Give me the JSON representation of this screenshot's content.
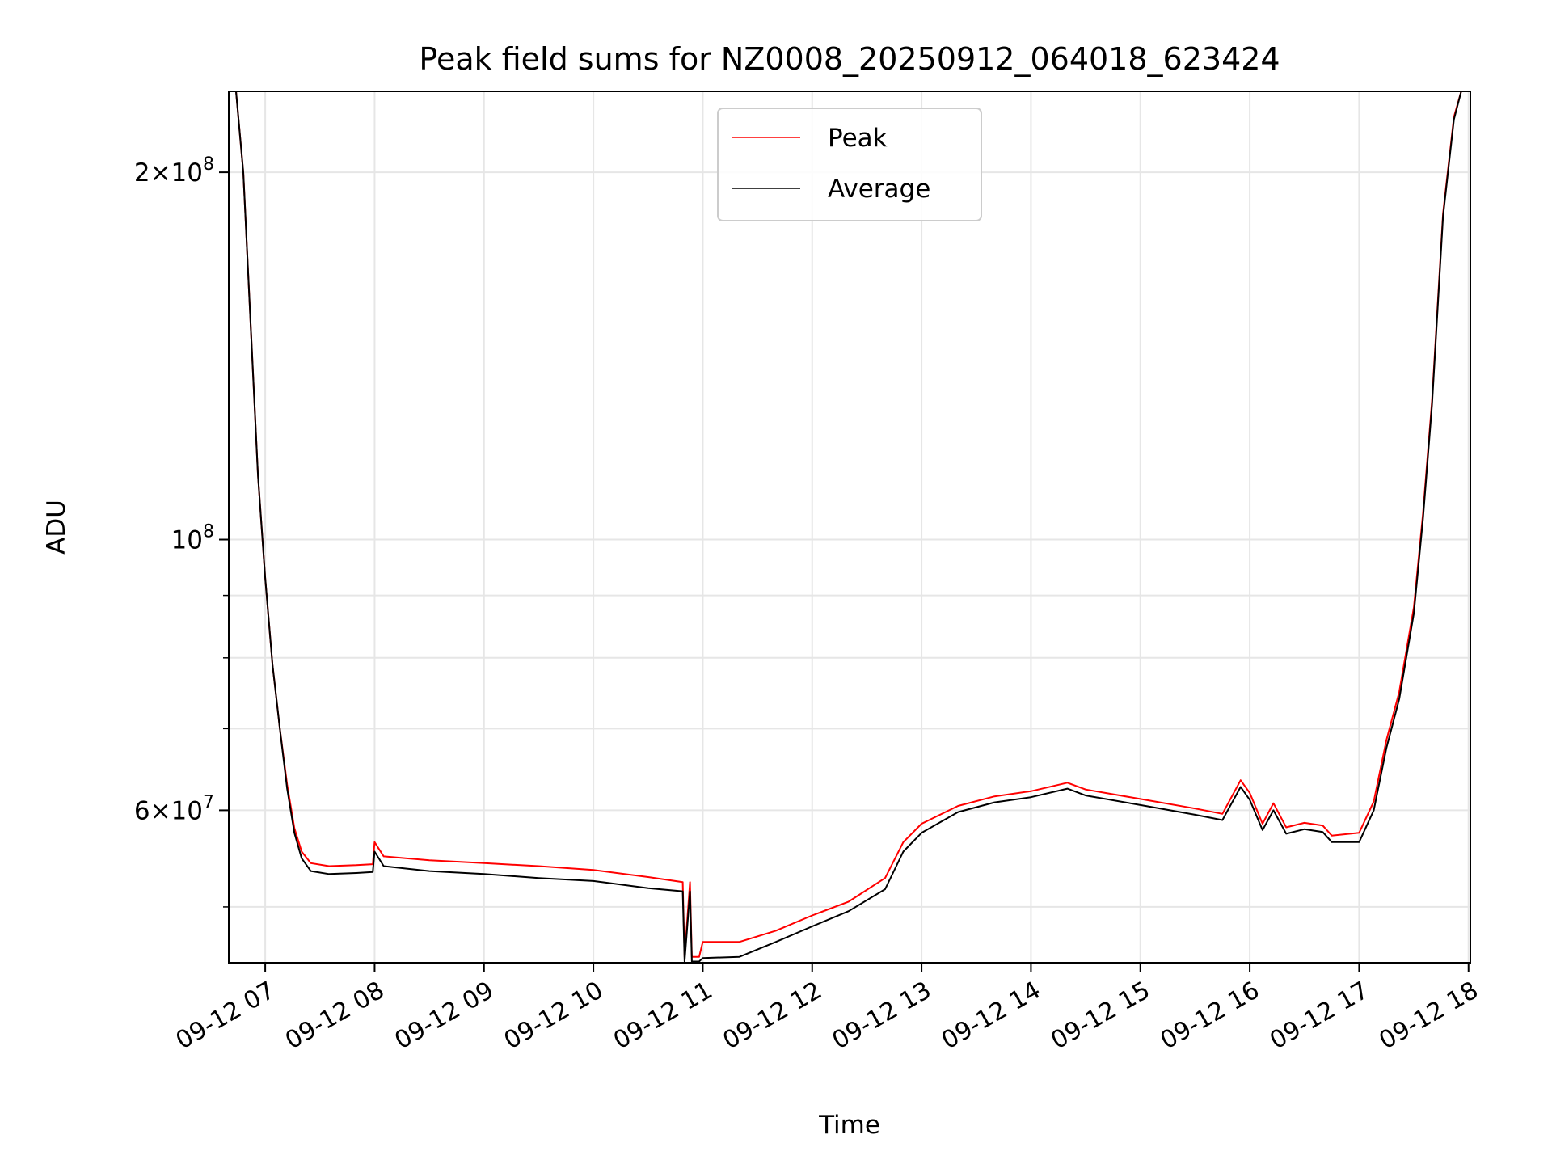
{
  "chart_data": {
    "type": "line",
    "title": "Peak field sums for NZ0008_20250912_064018_623424",
    "xlabel": "Time",
    "ylabel": "ADU",
    "y_scale": "log",
    "ylim": [
      45000000,
      233000000
    ],
    "xlim": [
      "2025-09-12 06:40",
      "2025-09-12 18:01"
    ],
    "grid": true,
    "legend_position": "top-center",
    "x_ticks": [
      {
        "label": "09-12 07",
        "x": "2025-09-12 07:00"
      },
      {
        "label": "09-12 08",
        "x": "2025-09-12 08:00"
      },
      {
        "label": "09-12 09",
        "x": "2025-09-12 09:00"
      },
      {
        "label": "09-12 10",
        "x": "2025-09-12 10:00"
      },
      {
        "label": "09-12 11",
        "x": "2025-09-12 11:00"
      },
      {
        "label": "09-12 12",
        "x": "2025-09-12 12:00"
      },
      {
        "label": "09-12 13",
        "x": "2025-09-12 13:00"
      },
      {
        "label": "09-12 14",
        "x": "2025-09-12 14:00"
      },
      {
        "label": "09-12 15",
        "x": "2025-09-12 15:00"
      },
      {
        "label": "09-12 16",
        "x": "2025-09-12 16:00"
      },
      {
        "label": "09-12 17",
        "x": "2025-09-12 17:00"
      },
      {
        "label": "09-12 18",
        "x": "2025-09-12 18:00"
      }
    ],
    "y_ticks": [
      {
        "value": 60000000,
        "base": "6",
        "exp": "7"
      },
      {
        "value": 100000000,
        "base": "",
        "exp": "8"
      },
      {
        "value": 200000000,
        "base": "2",
        "exp": "8"
      }
    ],
    "y_minor_ticks": [
      50000000,
      70000000,
      80000000,
      90000000
    ],
    "series": [
      {
        "name": "Peak",
        "color": "#ff0000",
        "points": [
          [
            "2025-09-12 06:44",
            233000000
          ],
          [
            "2025-09-12 06:48",
            200000000
          ],
          [
            "2025-09-12 06:52",
            150000000
          ],
          [
            "2025-09-12 06:56",
            113000000
          ],
          [
            "2025-09-12 07:00",
            93000000
          ],
          [
            "2025-09-12 07:04",
            79000000
          ],
          [
            "2025-09-12 07:08",
            70000000
          ],
          [
            "2025-09-12 07:12",
            63000000
          ],
          [
            "2025-09-12 07:16",
            58000000
          ],
          [
            "2025-09-12 07:20",
            55500000
          ],
          [
            "2025-09-12 07:25",
            54300000
          ],
          [
            "2025-09-12 07:35",
            54000000
          ],
          [
            "2025-09-12 07:50",
            54100000
          ],
          [
            "2025-09-12 07:59",
            54200000
          ],
          [
            "2025-09-12 08:00",
            56500000
          ],
          [
            "2025-09-12 08:05",
            55000000
          ],
          [
            "2025-09-12 08:30",
            54600000
          ],
          [
            "2025-09-12 09:00",
            54300000
          ],
          [
            "2025-09-12 09:30",
            54000000
          ],
          [
            "2025-09-12 10:00",
            53600000
          ],
          [
            "2025-09-12 10:30",
            52900000
          ],
          [
            "2025-09-12 10:49",
            52400000
          ],
          [
            "2025-09-12 10:50",
            45500000
          ],
          [
            "2025-09-12 10:53",
            52400000
          ],
          [
            "2025-09-12 10:54",
            45500000
          ],
          [
            "2025-09-12 10:58",
            45500000
          ],
          [
            "2025-09-12 11:00",
            46800000
          ],
          [
            "2025-09-12 11:20",
            46800000
          ],
          [
            "2025-09-12 11:40",
            47800000
          ],
          [
            "2025-09-12 12:00",
            49200000
          ],
          [
            "2025-09-12 12:20",
            50500000
          ],
          [
            "2025-09-12 12:40",
            52800000
          ],
          [
            "2025-09-12 12:50",
            56500000
          ],
          [
            "2025-09-12 13:00",
            58500000
          ],
          [
            "2025-09-12 13:20",
            60500000
          ],
          [
            "2025-09-12 13:40",
            61600000
          ],
          [
            "2025-09-12 14:00",
            62200000
          ],
          [
            "2025-09-12 14:20",
            63200000
          ],
          [
            "2025-09-12 14:30",
            62400000
          ],
          [
            "2025-09-12 15:00",
            61300000
          ],
          [
            "2025-09-12 15:30",
            60200000
          ],
          [
            "2025-09-12 15:45",
            59600000
          ],
          [
            "2025-09-12 15:55",
            63500000
          ],
          [
            "2025-09-12 16:00",
            62000000
          ],
          [
            "2025-09-12 16:07",
            58500000
          ],
          [
            "2025-09-12 16:13",
            60800000
          ],
          [
            "2025-09-12 16:20",
            58100000
          ],
          [
            "2025-09-12 16:30",
            58600000
          ],
          [
            "2025-09-12 16:40",
            58300000
          ],
          [
            "2025-09-12 16:45",
            57200000
          ],
          [
            "2025-09-12 17:00",
            57500000
          ],
          [
            "2025-09-12 17:08",
            61000000
          ],
          [
            "2025-09-12 17:15",
            68500000
          ],
          [
            "2025-09-12 17:22",
            75000000
          ],
          [
            "2025-09-12 17:30",
            88000000
          ],
          [
            "2025-09-12 17:35",
            105000000
          ],
          [
            "2025-09-12 17:40",
            130000000
          ],
          [
            "2025-09-12 17:46",
            185000000
          ],
          [
            "2025-09-12 17:52",
            222000000
          ],
          [
            "2025-09-12 17:56",
            233000000
          ]
        ]
      },
      {
        "name": "Average",
        "color": "#000000",
        "points": [
          [
            "2025-09-12 06:44",
            233000000
          ],
          [
            "2025-09-12 06:48",
            200000000
          ],
          [
            "2025-09-12 06:52",
            150000000
          ],
          [
            "2025-09-12 06:56",
            113000000
          ],
          [
            "2025-09-12 07:00",
            93000000
          ],
          [
            "2025-09-12 07:04",
            79000000
          ],
          [
            "2025-09-12 07:08",
            70000000
          ],
          [
            "2025-09-12 07:12",
            62500000
          ],
          [
            "2025-09-12 07:16",
            57500000
          ],
          [
            "2025-09-12 07:20",
            54800000
          ],
          [
            "2025-09-12 07:25",
            53500000
          ],
          [
            "2025-09-12 07:35",
            53200000
          ],
          [
            "2025-09-12 07:50",
            53300000
          ],
          [
            "2025-09-12 07:59",
            53400000
          ],
          [
            "2025-09-12 08:00",
            55500000
          ],
          [
            "2025-09-12 08:05",
            54000000
          ],
          [
            "2025-09-12 08:30",
            53500000
          ],
          [
            "2025-09-12 09:00",
            53200000
          ],
          [
            "2025-09-12 09:30",
            52800000
          ],
          [
            "2025-09-12 10:00",
            52500000
          ],
          [
            "2025-09-12 10:30",
            51800000
          ],
          [
            "2025-09-12 10:49",
            51500000
          ],
          [
            "2025-09-12 10:50",
            45100000
          ],
          [
            "2025-09-12 10:53",
            51500000
          ],
          [
            "2025-09-12 10:54",
            45100000
          ],
          [
            "2025-09-12 10:58",
            45100000
          ],
          [
            "2025-09-12 11:00",
            45400000
          ],
          [
            "2025-09-12 11:20",
            45500000
          ],
          [
            "2025-09-12 11:40",
            46800000
          ],
          [
            "2025-09-12 12:00",
            48200000
          ],
          [
            "2025-09-12 12:20",
            49600000
          ],
          [
            "2025-09-12 12:40",
            51700000
          ],
          [
            "2025-09-12 12:50",
            55500000
          ],
          [
            "2025-09-12 13:00",
            57500000
          ],
          [
            "2025-09-12 13:20",
            59800000
          ],
          [
            "2025-09-12 13:40",
            60900000
          ],
          [
            "2025-09-12 14:00",
            61500000
          ],
          [
            "2025-09-12 14:20",
            62500000
          ],
          [
            "2025-09-12 14:30",
            61700000
          ],
          [
            "2025-09-12 15:00",
            60600000
          ],
          [
            "2025-09-12 15:30",
            59500000
          ],
          [
            "2025-09-12 15:45",
            58900000
          ],
          [
            "2025-09-12 15:55",
            62700000
          ],
          [
            "2025-09-12 16:00",
            61200000
          ],
          [
            "2025-09-12 16:07",
            57800000
          ],
          [
            "2025-09-12 16:13",
            60000000
          ],
          [
            "2025-09-12 16:20",
            57400000
          ],
          [
            "2025-09-12 16:30",
            57900000
          ],
          [
            "2025-09-12 16:40",
            57600000
          ],
          [
            "2025-09-12 16:45",
            56500000
          ],
          [
            "2025-09-12 17:00",
            56500000
          ],
          [
            "2025-09-12 17:08",
            60000000
          ],
          [
            "2025-09-12 17:15",
            67500000
          ],
          [
            "2025-09-12 17:22",
            74000000
          ],
          [
            "2025-09-12 17:30",
            87000000
          ],
          [
            "2025-09-12 17:35",
            104000000
          ],
          [
            "2025-09-12 17:40",
            129000000
          ],
          [
            "2025-09-12 17:46",
            184000000
          ],
          [
            "2025-09-12 17:52",
            221000000
          ],
          [
            "2025-09-12 17:56",
            233000000
          ]
        ]
      }
    ]
  }
}
